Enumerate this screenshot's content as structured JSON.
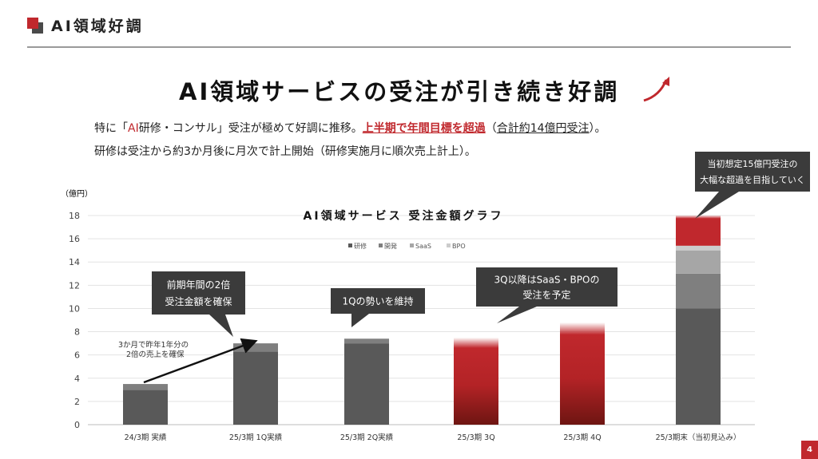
{
  "header": {
    "title": "AI領域好調"
  },
  "main_title": "AI領域サービスの受注が引き続き好調",
  "desc": {
    "line1_a": "特に「",
    "line1_ai": "AI",
    "line1_b": "研修・コンサル」受注が極めて好調に推移。",
    "line1_red": "上半期で年間目標を超過",
    "line1_c": "（",
    "line1_total": "合計約14億円受注",
    "line1_d": "）。",
    "line2": "研修は受注から約3か月後に月次で計上開始（研修実施月に順次売上計上）。"
  },
  "page_number": "4",
  "chart_data": {
    "type": "bar",
    "title": "AI領域サービス 受注金額グラフ",
    "ylabel": "（億円）",
    "ylim": [
      0,
      18
    ],
    "yticks": [
      0,
      2,
      4,
      6,
      8,
      10,
      12,
      14,
      16,
      18
    ],
    "grid": true,
    "legend_position": "top-center",
    "legend": [
      "研修",
      "開発",
      "SaaS",
      "BPO"
    ],
    "categories": [
      "24/3期 実績",
      "25/3期 1Q実績",
      "25/3期 2Q実績",
      "25/3期 3Q",
      "25/3期 4Q",
      "25/3期末（当初見込み）"
    ],
    "series": [
      {
        "name": "研修",
        "values": [
          3.0,
          6.3,
          7.0,
          null,
          null,
          10.0
        ]
      },
      {
        "name": "開発",
        "values": [
          0.5,
          0.7,
          0.4,
          null,
          null,
          3.0
        ]
      },
      {
        "name": "SaaS",
        "values": [
          0,
          0,
          0,
          null,
          null,
          2.0
        ]
      },
      {
        "name": "BPO",
        "values": [
          0,
          0,
          0,
          null,
          null,
          0.4
        ]
      }
    ],
    "forecast_totals": [
      null,
      null,
      null,
      7.5,
      8.8,
      18.0
    ],
    "forecast_from": [
      null,
      null,
      null,
      0,
      0,
      15.4
    ],
    "colors": {
      "研修": "#595959",
      "開発": "#7f7f7f",
      "SaaS": "#a6a6a6",
      "BPO": "#cccccc",
      "forecast": "#c0282d",
      "forecast_dark": "#6e1512",
      "accent": "#c0282d"
    },
    "annotations": [
      {
        "id": "a0",
        "lines": [
          "3か月で昨年1年分の",
          "2倍の売上を確保"
        ]
      },
      {
        "id": "c1",
        "lines": [
          "前期年間の2倍",
          "受注金額を確保"
        ]
      },
      {
        "id": "c2",
        "lines": [
          "1Qの勢いを維持"
        ]
      },
      {
        "id": "c3",
        "lines": [
          "3Q以降はSaaS・BPOの",
          "受注を予定"
        ]
      },
      {
        "id": "c4",
        "lines": [
          "当初想定15億円受注の",
          "大幅な超過を目指していく"
        ]
      }
    ]
  }
}
